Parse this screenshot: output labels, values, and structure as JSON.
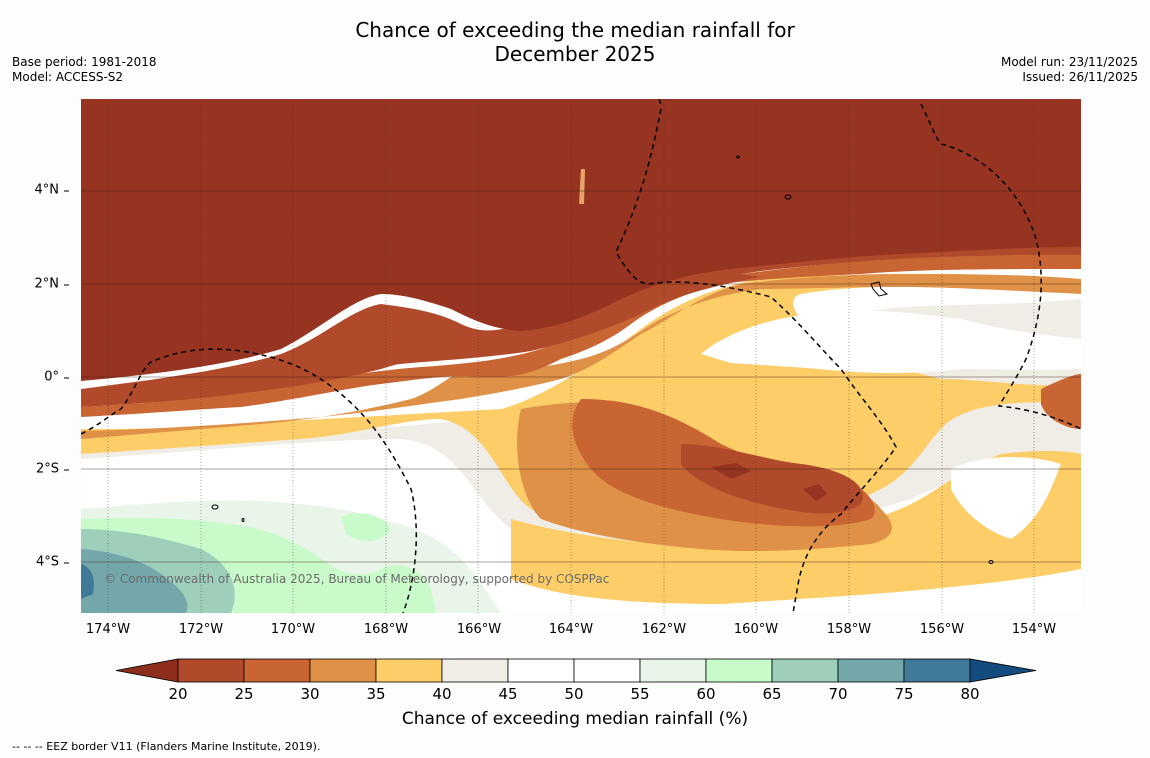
{
  "title_line1": "Chance of exceeding the median rainfall for",
  "title_line2": "December 2025",
  "base_period": "Base period: 1981-2018",
  "model": "Model: ACCESS-S2",
  "model_run": "Model run: 23/11/2025",
  "issued": "Issued: 26/11/2025",
  "lat_labels": [
    "4°N",
    "2°N",
    "0°",
    "2°S",
    "4°S"
  ],
  "lon_labels": [
    "174°W",
    "172°W",
    "170°W",
    "168°W",
    "166°W",
    "164°W",
    "162°W",
    "160°W",
    "158°W",
    "156°W",
    "154°W"
  ],
  "credit": "© Commonwealth of Australia 2025, Bureau of Meteorology, supported by COSPPac",
  "colorbar": {
    "ticks": [
      "20",
      "25",
      "30",
      "35",
      "40",
      "45",
      "50",
      "55",
      "60",
      "65",
      "70",
      "75",
      "80"
    ],
    "colors": [
      "#8f2d1d",
      "#b14a2a",
      "#c96433",
      "#df9247",
      "#fdcd68",
      "#f0ece6",
      "#ffffff",
      "#ffffff",
      "#e9f5e8",
      "#c9fbca",
      "#9dcfba",
      "#73a7aa",
      "#3f7a98",
      "#144b7e"
    ],
    "title": "Chance of exceeding median rainfall (%)"
  },
  "footnote": "--  --  -- EEZ border V11 (Flanders Marine Institute, 2019)."
}
